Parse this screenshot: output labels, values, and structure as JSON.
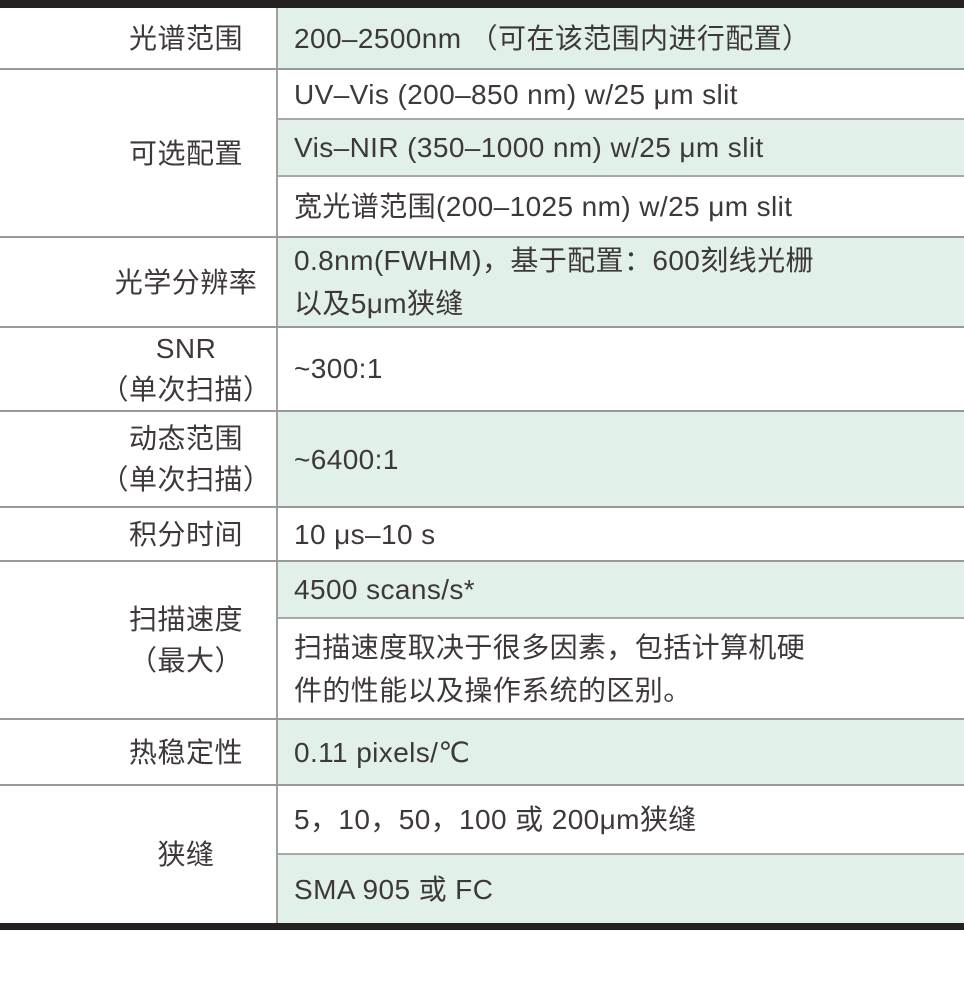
{
  "table": {
    "colors": {
      "value_row_green": "#e1f0e8",
      "heavy_border": "#262121",
      "thin_divider": "#9b9998",
      "text": "#3e3938"
    },
    "rows": [
      {
        "name": "spectral-range",
        "label_lines": [
          "光谱范围"
        ],
        "values": [
          {
            "bg": "green",
            "lines": [
              "200–2500nm （可在该范围内进行配置）"
            ]
          }
        ]
      },
      {
        "name": "optional-configurations",
        "label_lines": [
          "可选配置"
        ],
        "values": [
          {
            "bg": "white",
            "lines": [
              "UV–Vis (200–850 nm) w/25 μm slit"
            ]
          },
          {
            "bg": "green",
            "lines": [
              "Vis–NIR (350–1000 nm) w/25 μm slit"
            ]
          },
          {
            "bg": "white",
            "lines": [
              "宽光谱范围(200–1025 nm) w/25 μm slit"
            ]
          }
        ]
      },
      {
        "name": "optical-resolution",
        "label_lines": [
          "光学分辨率"
        ],
        "values": [
          {
            "bg": "green",
            "lines": [
              "0.8nm(FWHM)，基于配置：600刻线光栅",
              "以及5μm狭缝"
            ]
          }
        ]
      },
      {
        "name": "snr-single-scan",
        "label_lines": [
          "SNR",
          "（单次扫描）"
        ],
        "values": [
          {
            "bg": "white",
            "lines": [
              "~300:1"
            ]
          }
        ]
      },
      {
        "name": "dynamic-range-single-scan",
        "label_lines": [
          "动态范围",
          "（单次扫描）"
        ],
        "values": [
          {
            "bg": "green",
            "lines": [
              "~6400:1"
            ]
          }
        ]
      },
      {
        "name": "integration-time",
        "label_lines": [
          "积分时间"
        ],
        "values": [
          {
            "bg": "white",
            "lines": [
              "10 μs–10 s"
            ]
          }
        ]
      },
      {
        "name": "scan-rate-max",
        "label_lines": [
          "扫描速度",
          "（最大）"
        ],
        "values": [
          {
            "bg": "green",
            "lines": [
              "4500 scans/s*"
            ]
          },
          {
            "bg": "white",
            "lines": [
              "扫描速度取决于很多因素，包括计算机硬",
              "件的性能以及操作系统的区别。"
            ]
          }
        ]
      },
      {
        "name": "thermal-stability",
        "label_lines": [
          "热稳定性"
        ],
        "values": [
          {
            "bg": "green",
            "lines": [
              "0.11 pixels/℃"
            ]
          }
        ]
      },
      {
        "name": "slit",
        "label_lines": [
          "狭缝"
        ],
        "values": [
          {
            "bg": "white",
            "lines": [
              "5，10，50，100 或 200μm狭缝"
            ]
          },
          {
            "bg": "green",
            "lines": [
              "SMA 905 或 FC"
            ]
          }
        ]
      }
    ]
  }
}
